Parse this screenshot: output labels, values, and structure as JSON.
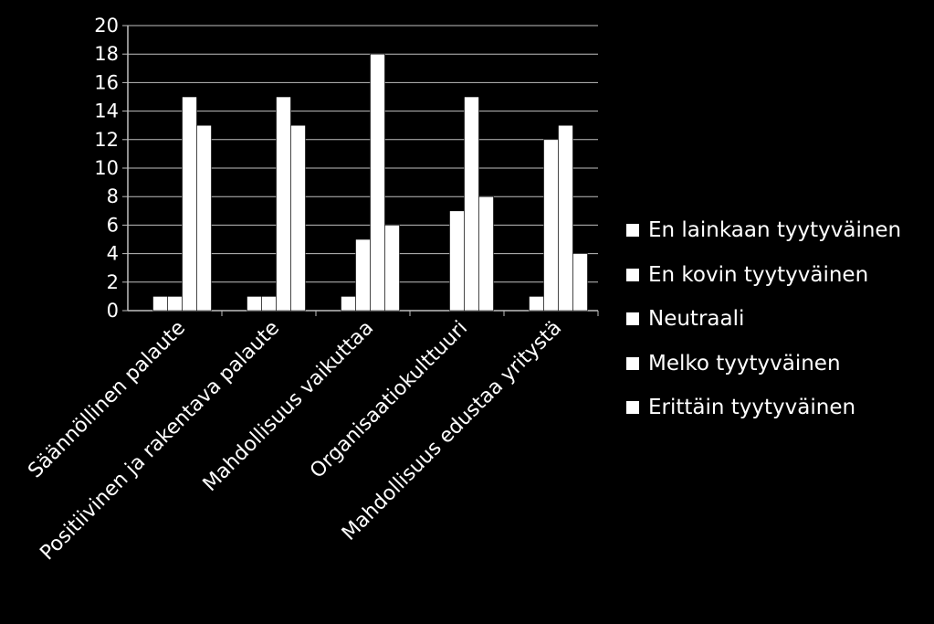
{
  "chart_data": {
    "type": "bar",
    "title": "",
    "xlabel": "",
    "ylabel": "",
    "ylim": [
      0,
      20
    ],
    "y_ticks": [
      "0",
      "2",
      "4",
      "6",
      "8",
      "10",
      "12",
      "14",
      "16",
      "18",
      "20"
    ],
    "grid": true,
    "legend_position": "right",
    "bar_color": "#ffffff",
    "background_color": "#000000",
    "categories": [
      "Säännöllinen palaute",
      "Positiivinen ja rakentava palaute",
      "Mahdollisuus vaikuttaa",
      "Organisaatiokulttuuri",
      "Mahdollisuus edustaa yritystä"
    ],
    "series": [
      {
        "name": "En lainkaan tyytyväinen",
        "values": [
          0,
          0,
          0,
          0,
          0
        ]
      },
      {
        "name": "En kovin tyytyväinen",
        "values": [
          1,
          1,
          1,
          0,
          1
        ]
      },
      {
        "name": "Neutraali",
        "values": [
          1,
          1,
          5,
          7,
          12
        ]
      },
      {
        "name": "Melko tyytyväinen",
        "values": [
          15,
          15,
          18,
          15,
          13
        ]
      },
      {
        "name": "Erittäin tyytyväinen",
        "values": [
          13,
          13,
          6,
          8,
          4
        ]
      }
    ]
  }
}
